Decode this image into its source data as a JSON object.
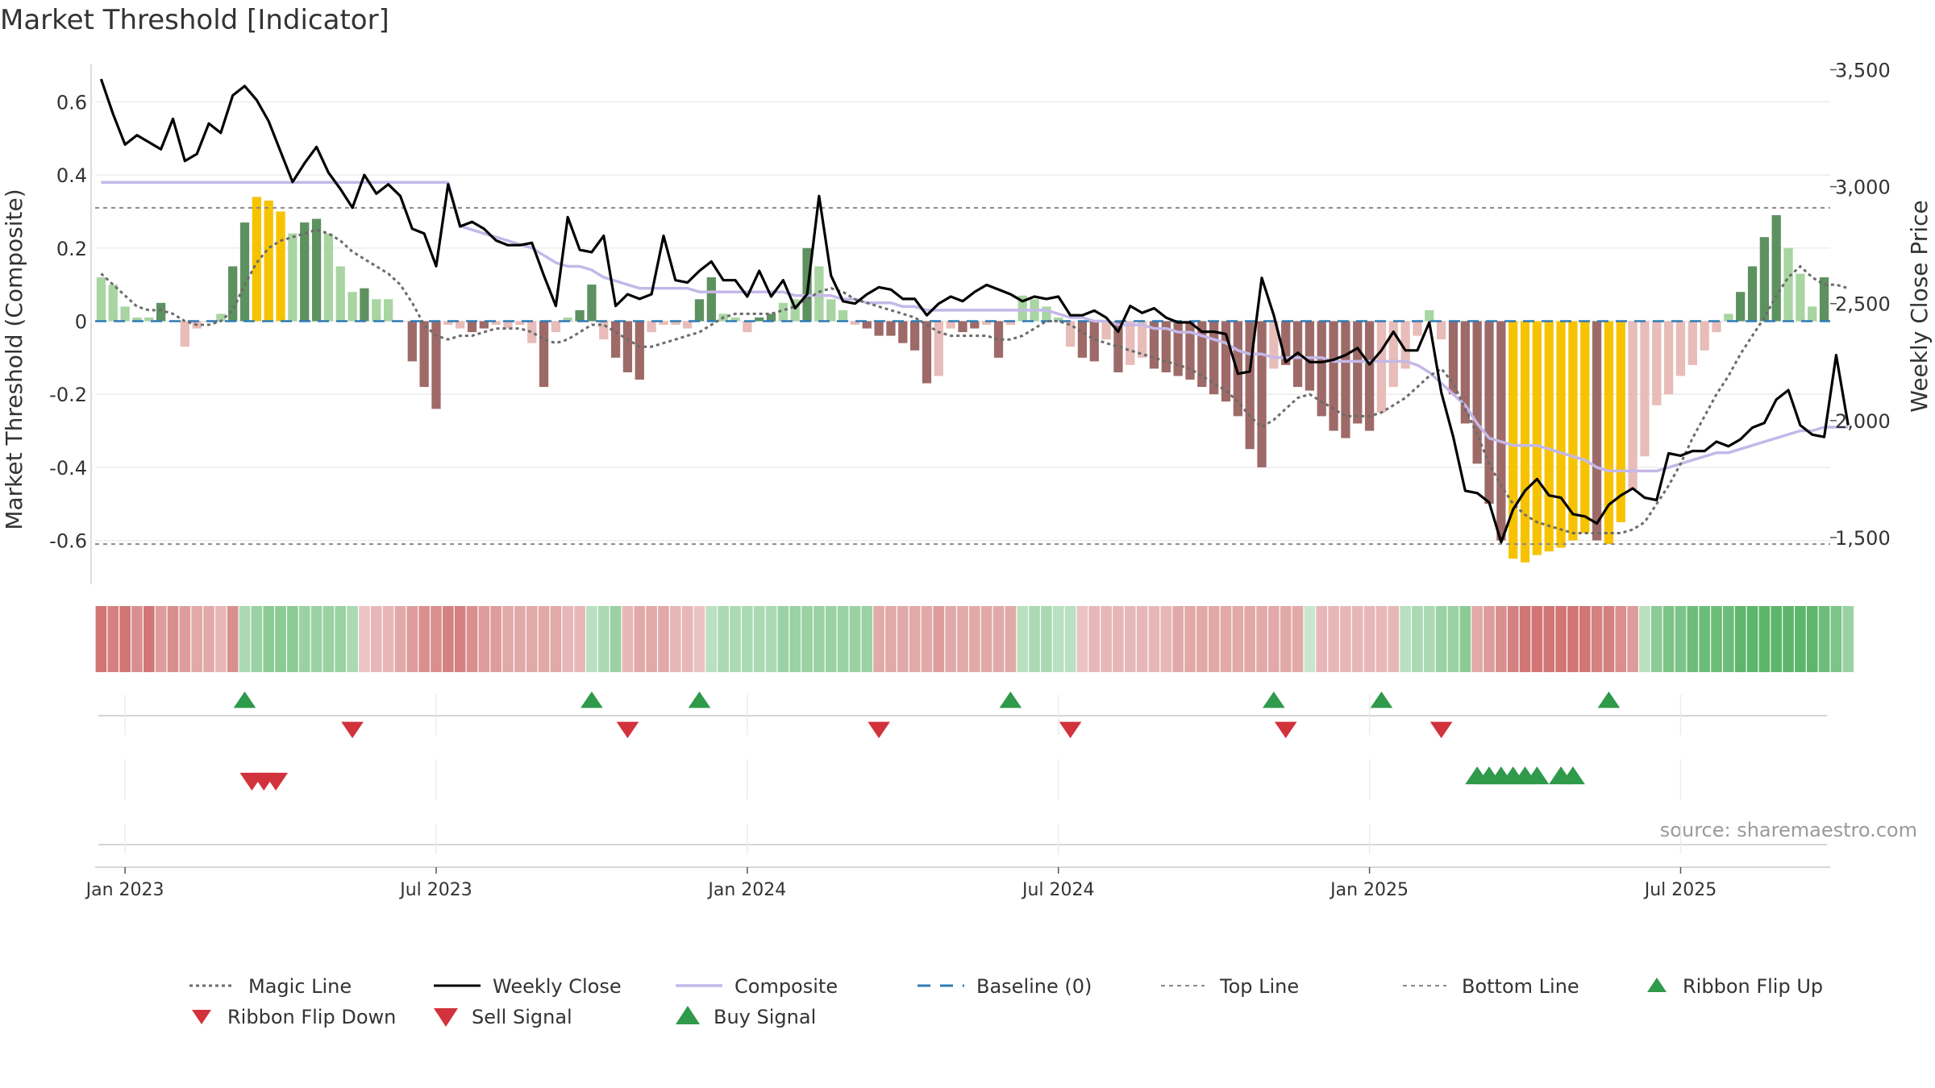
{
  "chart_data": {
    "type": "bar",
    "title": "Market Threshold [Indicator]",
    "source": "source: sharemaestro.com",
    "ylabel_left": "Market Threshold (Composite)",
    "ylabel_right": "Weekly Close Price",
    "ylim_left": [
      -0.72,
      0.72
    ],
    "ylim_right": [
      1300,
      3550
    ],
    "left_ticks": [
      {
        "v": 0.6,
        "label": "0.6"
      },
      {
        "v": 0.4,
        "label": "0.4"
      },
      {
        "v": 0.2,
        "label": "0.2"
      },
      {
        "v": 0,
        "label": "0"
      },
      {
        "v": -0.2,
        "label": "-0.2"
      },
      {
        "v": -0.4,
        "label": "-0.4"
      },
      {
        "v": -0.6,
        "label": "-0.6"
      }
    ],
    "right_ticks": [
      {
        "v": 3500,
        "label": "3,500"
      },
      {
        "v": 3000,
        "label": "3,000"
      },
      {
        "v": 2500,
        "label": "2,500"
      },
      {
        "v": 2000,
        "label": "2,000"
      },
      {
        "v": 1500,
        "label": "1,500"
      }
    ],
    "x_ticks": [
      {
        "i": 2,
        "label": "Jan 2023"
      },
      {
        "i": 28,
        "label": "Jul 2023"
      },
      {
        "i": 54,
        "label": "Jan 2024"
      },
      {
        "i": 80,
        "label": "Jul 2024"
      },
      {
        "i": 106,
        "label": "Jan 2025"
      },
      {
        "i": 132,
        "label": "Jul 2025"
      }
    ],
    "top_line": 0.31,
    "bottom_line": -0.61,
    "grid": true,
    "legend_position": "bottom",
    "composite_bars": [
      0.12,
      0.1,
      0.04,
      0.01,
      0.01,
      0.05,
      0.0,
      -0.07,
      -0.02,
      0.0,
      0.02,
      0.15,
      0.27,
      0.34,
      0.33,
      0.3,
      0.24,
      0.27,
      0.28,
      0.24,
      0.15,
      0.08,
      0.09,
      0.06,
      0.06,
      0.0,
      -0.11,
      -0.18,
      -0.24,
      -0.01,
      -0.02,
      -0.03,
      -0.02,
      -0.01,
      -0.02,
      -0.01,
      -0.06,
      -0.18,
      -0.03,
      0.01,
      0.03,
      0.1,
      -0.05,
      -0.1,
      -0.14,
      -0.16,
      -0.03,
      -0.01,
      -0.01,
      -0.02,
      0.06,
      0.12,
      0.02,
      0.01,
      -0.03,
      0.01,
      0.02,
      0.05,
      0.06,
      0.2,
      0.15,
      0.06,
      0.03,
      -0.01,
      -0.02,
      -0.04,
      -0.04,
      -0.06,
      -0.08,
      -0.17,
      -0.15,
      -0.02,
      -0.03,
      -0.02,
      -0.01,
      -0.1,
      -0.01,
      0.07,
      0.06,
      0.04,
      0.01,
      -0.07,
      -0.1,
      -0.11,
      -0.05,
      -0.14,
      -0.12,
      -0.1,
      -0.13,
      -0.14,
      -0.15,
      -0.16,
      -0.18,
      -0.2,
      -0.22,
      -0.26,
      -0.35,
      -0.4,
      -0.13,
      -0.12,
      -0.18,
      -0.19,
      -0.26,
      -0.3,
      -0.32,
      -0.28,
      -0.3,
      -0.25,
      -0.18,
      -0.13,
      -0.04,
      0.03,
      -0.05,
      -0.2,
      -0.28,
      -0.39,
      -0.5,
      -0.6,
      -0.65,
      -0.66,
      -0.64,
      -0.63,
      -0.62,
      -0.6,
      -0.58,
      -0.6,
      -0.61,
      -0.55,
      -0.46,
      -0.37,
      -0.23,
      -0.2,
      -0.15,
      -0.12,
      -0.08,
      -0.03,
      0.02,
      0.08,
      0.15,
      0.23,
      0.29,
      0.2,
      0.13,
      0.04,
      0.12
    ],
    "bar_styles": [
      "pl",
      "pl",
      "pl",
      "pl",
      "pl",
      "pd",
      "pl",
      "nl",
      "nl",
      "nl",
      "pl",
      "pd",
      "pd",
      "hy",
      "hy",
      "hy",
      "pl",
      "pd",
      "pd",
      "pl",
      "pl",
      "pl",
      "pd",
      "pl",
      "pl",
      "nl",
      "nd",
      "nd",
      "nd",
      "nl",
      "nl",
      "nd",
      "nd",
      "nl",
      "nl",
      "nl",
      "nl",
      "nd",
      "nl",
      "pl",
      "pd",
      "pd",
      "nl",
      "nd",
      "nd",
      "nd",
      "nl",
      "nl",
      "nl",
      "nl",
      "pd",
      "pd",
      "pl",
      "pl",
      "nl",
      "pd",
      "pd",
      "pl",
      "pl",
      "pd",
      "pl",
      "pl",
      "pl",
      "nl",
      "nd",
      "nd",
      "nd",
      "nd",
      "nd",
      "nd",
      "nl",
      "nl",
      "nd",
      "nd",
      "nl",
      "nd",
      "nl",
      "pl",
      "pl",
      "pl",
      "pl",
      "nl",
      "nd",
      "nd",
      "nl",
      "nd",
      "nl",
      "nl",
      "nd",
      "nd",
      "nd",
      "nd",
      "nd",
      "nd",
      "nd",
      "nd",
      "nd",
      "nd",
      "nl",
      "nd",
      "nd",
      "nd",
      "nd",
      "nd",
      "nd",
      "nd",
      "nd",
      "nl",
      "nl",
      "nl",
      "nl",
      "pl",
      "nl",
      "nd",
      "nd",
      "nd",
      "nd",
      "nd",
      "hy",
      "hy",
      "hy",
      "hy",
      "hy",
      "hy",
      "hy",
      "nd",
      "hy",
      "hy",
      "nl",
      "nl",
      "nl",
      "nl",
      "nl",
      "nl",
      "nl",
      "nl",
      "pl",
      "pd",
      "pd",
      "pd",
      "pd",
      "pl",
      "pl",
      "pl",
      "pd"
    ],
    "weekly_close": [
      3460,
      3310,
      3180,
      3220,
      3190,
      3160,
      3290,
      3110,
      3140,
      3270,
      3230,
      3390,
      3430,
      3370,
      3280,
      3150,
      3020,
      3100,
      3170,
      3060,
      2990,
      2910,
      3050,
      2970,
      3010,
      2960,
      2820,
      2800,
      2660,
      3010,
      2830,
      2850,
      2820,
      2770,
      2750,
      2750,
      2760,
      2620,
      2490,
      2870,
      2730,
      2720,
      2790,
      2490,
      2540,
      2520,
      2540,
      2790,
      2600,
      2590,
      2640,
      2680,
      2600,
      2600,
      2530,
      2640,
      2530,
      2600,
      2480,
      2540,
      2960,
      2620,
      2510,
      2500,
      2540,
      2570,
      2560,
      2520,
      2520,
      2450,
      2500,
      2530,
      2510,
      2550,
      2580,
      2560,
      2540,
      2510,
      2530,
      2520,
      2530,
      2450,
      2450,
      2470,
      2440,
      2380,
      2490,
      2460,
      2480,
      2440,
      2420,
      2420,
      2380,
      2380,
      2370,
      2200,
      2210,
      2610,
      2450,
      2250,
      2290,
      2250,
      2250,
      2260,
      2280,
      2310,
      2240,
      2300,
      2380,
      2300,
      2300,
      2420,
      2120,
      1930,
      1700,
      1690,
      1650,
      1480,
      1620,
      1700,
      1750,
      1680,
      1670,
      1600,
      1590,
      1560,
      1640,
      1680,
      1710,
      1670,
      1660,
      1860,
      1850,
      1870,
      1870,
      1910,
      1890,
      1920,
      1970,
      1990,
      2090,
      2130,
      1980,
      1940,
      1930,
      2280,
      1980
    ],
    "composite_line": [
      0.38,
      0.38,
      0.38,
      0.38,
      0.38,
      0.38,
      0.38,
      0.38,
      0.38,
      0.38,
      0.38,
      0.38,
      0.38,
      0.38,
      0.38,
      0.38,
      0.38,
      0.38,
      0.38,
      0.38,
      0.38,
      0.38,
      0.38,
      0.38,
      0.38,
      0.38,
      0.38,
      0.38,
      0.38,
      0.38,
      0.26,
      0.25,
      0.24,
      0.23,
      0.22,
      0.21,
      0.2,
      0.18,
      0.16,
      0.15,
      0.15,
      0.14,
      0.12,
      0.11,
      0.1,
      0.09,
      0.09,
      0.09,
      0.09,
      0.09,
      0.08,
      0.08,
      0.08,
      0.08,
      0.08,
      0.08,
      0.08,
      0.08,
      0.07,
      0.07,
      0.07,
      0.07,
      0.06,
      0.06,
      0.05,
      0.05,
      0.05,
      0.04,
      0.04,
      0.03,
      0.03,
      0.03,
      0.03,
      0.03,
      0.03,
      0.03,
      0.03,
      0.03,
      0.03,
      0.03,
      0.02,
      0.01,
      0.01,
      0.0,
      0.0,
      -0.01,
      -0.01,
      -0.01,
      -0.02,
      -0.02,
      -0.03,
      -0.03,
      -0.04,
      -0.05,
      -0.06,
      -0.08,
      -0.09,
      -0.09,
      -0.1,
      -0.1,
      -0.1,
      -0.1,
      -0.1,
      -0.11,
      -0.11,
      -0.11,
      -0.11,
      -0.11,
      -0.11,
      -0.11,
      -0.12,
      -0.14,
      -0.17,
      -0.2,
      -0.23,
      -0.28,
      -0.32,
      -0.33,
      -0.34,
      -0.34,
      -0.34,
      -0.35,
      -0.36,
      -0.37,
      -0.38,
      -0.4,
      -0.41,
      -0.41,
      -0.41,
      -0.41,
      -0.41,
      -0.4,
      -0.39,
      -0.38,
      -0.37,
      -0.36,
      -0.36,
      -0.35,
      -0.34,
      -0.33,
      -0.32,
      -0.31,
      -0.3,
      -0.3,
      -0.29,
      -0.29,
      -0.29
    ],
    "magic_line": [
      0.13,
      0.1,
      0.07,
      0.04,
      0.03,
      0.03,
      0.02,
      0.0,
      -0.01,
      -0.01,
      0.0,
      0.03,
      0.1,
      0.16,
      0.2,
      0.22,
      0.23,
      0.24,
      0.25,
      0.24,
      0.22,
      0.19,
      0.17,
      0.15,
      0.13,
      0.1,
      0.05,
      -0.01,
      -0.04,
      -0.05,
      -0.04,
      -0.04,
      -0.03,
      -0.02,
      -0.02,
      -0.02,
      -0.03,
      -0.05,
      -0.06,
      -0.05,
      -0.03,
      -0.01,
      -0.01,
      -0.03,
      -0.05,
      -0.07,
      -0.07,
      -0.06,
      -0.05,
      -0.04,
      -0.03,
      -0.01,
      0.01,
      0.02,
      0.02,
      0.02,
      0.02,
      0.03,
      0.04,
      0.06,
      0.08,
      0.09,
      0.08,
      0.06,
      0.05,
      0.04,
      0.03,
      0.02,
      0.01,
      -0.01,
      -0.03,
      -0.04,
      -0.04,
      -0.04,
      -0.04,
      -0.05,
      -0.05,
      -0.04,
      -0.02,
      0.0,
      0.0,
      -0.01,
      -0.03,
      -0.05,
      -0.06,
      -0.07,
      -0.08,
      -0.09,
      -0.1,
      -0.11,
      -0.12,
      -0.13,
      -0.15,
      -0.17,
      -0.19,
      -0.22,
      -0.26,
      -0.29,
      -0.27,
      -0.24,
      -0.21,
      -0.2,
      -0.22,
      -0.24,
      -0.26,
      -0.26,
      -0.26,
      -0.25,
      -0.23,
      -0.21,
      -0.18,
      -0.15,
      -0.13,
      -0.17,
      -0.24,
      -0.31,
      -0.39,
      -0.45,
      -0.5,
      -0.53,
      -0.55,
      -0.56,
      -0.57,
      -0.58,
      -0.58,
      -0.58,
      -0.58,
      -0.58,
      -0.57,
      -0.55,
      -0.5,
      -0.45,
      -0.39,
      -0.32,
      -0.26,
      -0.2,
      -0.15,
      -0.09,
      -0.04,
      0.01,
      0.07,
      0.12,
      0.15,
      0.12,
      0.1,
      0.1,
      0.09
    ],
    "ribbon": [
      -0.8,
      -0.7,
      -0.8,
      -0.6,
      -0.8,
      -0.5,
      -0.6,
      -0.5,
      -0.4,
      -0.4,
      -0.3,
      -0.6,
      0.3,
      0.4,
      0.5,
      0.5,
      0.5,
      0.4,
      0.4,
      0.4,
      0.4,
      0.3,
      -0.2,
      -0.3,
      -0.3,
      -0.4,
      -0.5,
      -0.6,
      -0.6,
      -0.7,
      -0.7,
      -0.6,
      -0.5,
      -0.5,
      -0.4,
      -0.4,
      -0.4,
      -0.4,
      -0.4,
      -0.3,
      -0.3,
      0.2,
      0.3,
      0.4,
      -0.3,
      -0.4,
      -0.4,
      -0.4,
      -0.3,
      -0.3,
      -0.2,
      0.2,
      0.3,
      0.3,
      0.3,
      0.3,
      0.3,
      0.4,
      0.4,
      0.4,
      0.4,
      0.4,
      0.4,
      0.4,
      0.4,
      -0.4,
      -0.4,
      -0.4,
      -0.4,
      -0.4,
      -0.5,
      -0.4,
      -0.4,
      -0.4,
      -0.4,
      -0.4,
      -0.4,
      0.2,
      0.3,
      0.3,
      0.2,
      0.2,
      -0.2,
      -0.3,
      -0.3,
      -0.3,
      -0.3,
      -0.3,
      -0.3,
      -0.3,
      -0.4,
      -0.4,
      -0.4,
      -0.4,
      -0.4,
      -0.4,
      -0.4,
      -0.4,
      -0.4,
      -0.4,
      -0.4,
      0.1,
      -0.3,
      -0.3,
      -0.3,
      -0.3,
      -0.3,
      -0.3,
      -0.3,
      0.2,
      0.3,
      0.3,
      0.4,
      0.4,
      0.5,
      -0.4,
      -0.5,
      -0.6,
      -0.7,
      -0.8,
      -0.8,
      -0.8,
      -0.8,
      -0.8,
      -0.8,
      -0.7,
      -0.7,
      -0.6,
      -0.5,
      0.2,
      0.5,
      0.6,
      0.6,
      0.7,
      0.7,
      0.7,
      0.7,
      0.8,
      0.8,
      0.8,
      0.8,
      0.8,
      0.8,
      0.8,
      0.7,
      0.6,
      0.4
    ],
    "buy_signals": [
      12,
      41,
      50,
      76,
      98,
      107,
      126
    ],
    "sell_signals": [
      21,
      44,
      65,
      81,
      99,
      112
    ],
    "ribbon_flip_down": [
      12.6,
      13.6,
      14.6
    ],
    "ribbon_flip_up": [
      115,
      116,
      117,
      118,
      119,
      120,
      122,
      123
    ],
    "legend": [
      {
        "key": "magic",
        "label": "Magic Line"
      },
      {
        "key": "close",
        "label": "Weekly Close"
      },
      {
        "key": "composite",
        "label": "Composite"
      },
      {
        "key": "baseline",
        "label": "Baseline (0)"
      },
      {
        "key": "top",
        "label": "Top Line"
      },
      {
        "key": "bottom",
        "label": "Bottom Line"
      },
      {
        "key": "flipup",
        "label": "Ribbon Flip Up"
      },
      {
        "key": "flipdown",
        "label": "Ribbon Flip Down"
      },
      {
        "key": "sell",
        "label": "Sell Signal"
      },
      {
        "key": "buy",
        "label": "Buy Signal"
      }
    ],
    "colors": {
      "positive_dark": "#5e9160",
      "positive_light": "#a8d5a2",
      "negative_dark": "#9e6a68",
      "negative_light": "#e8bcb8",
      "hysteria": "#f7c300",
      "close": "#000000",
      "composite": "#c4b8e8",
      "magic": "#6b6b6b",
      "baseline": "#2f7bb5",
      "ribbon_green": "#3ea84f",
      "ribbon_red": "#c85a5a",
      "buy": "#2e9a4a",
      "sell": "#d1323c"
    }
  }
}
